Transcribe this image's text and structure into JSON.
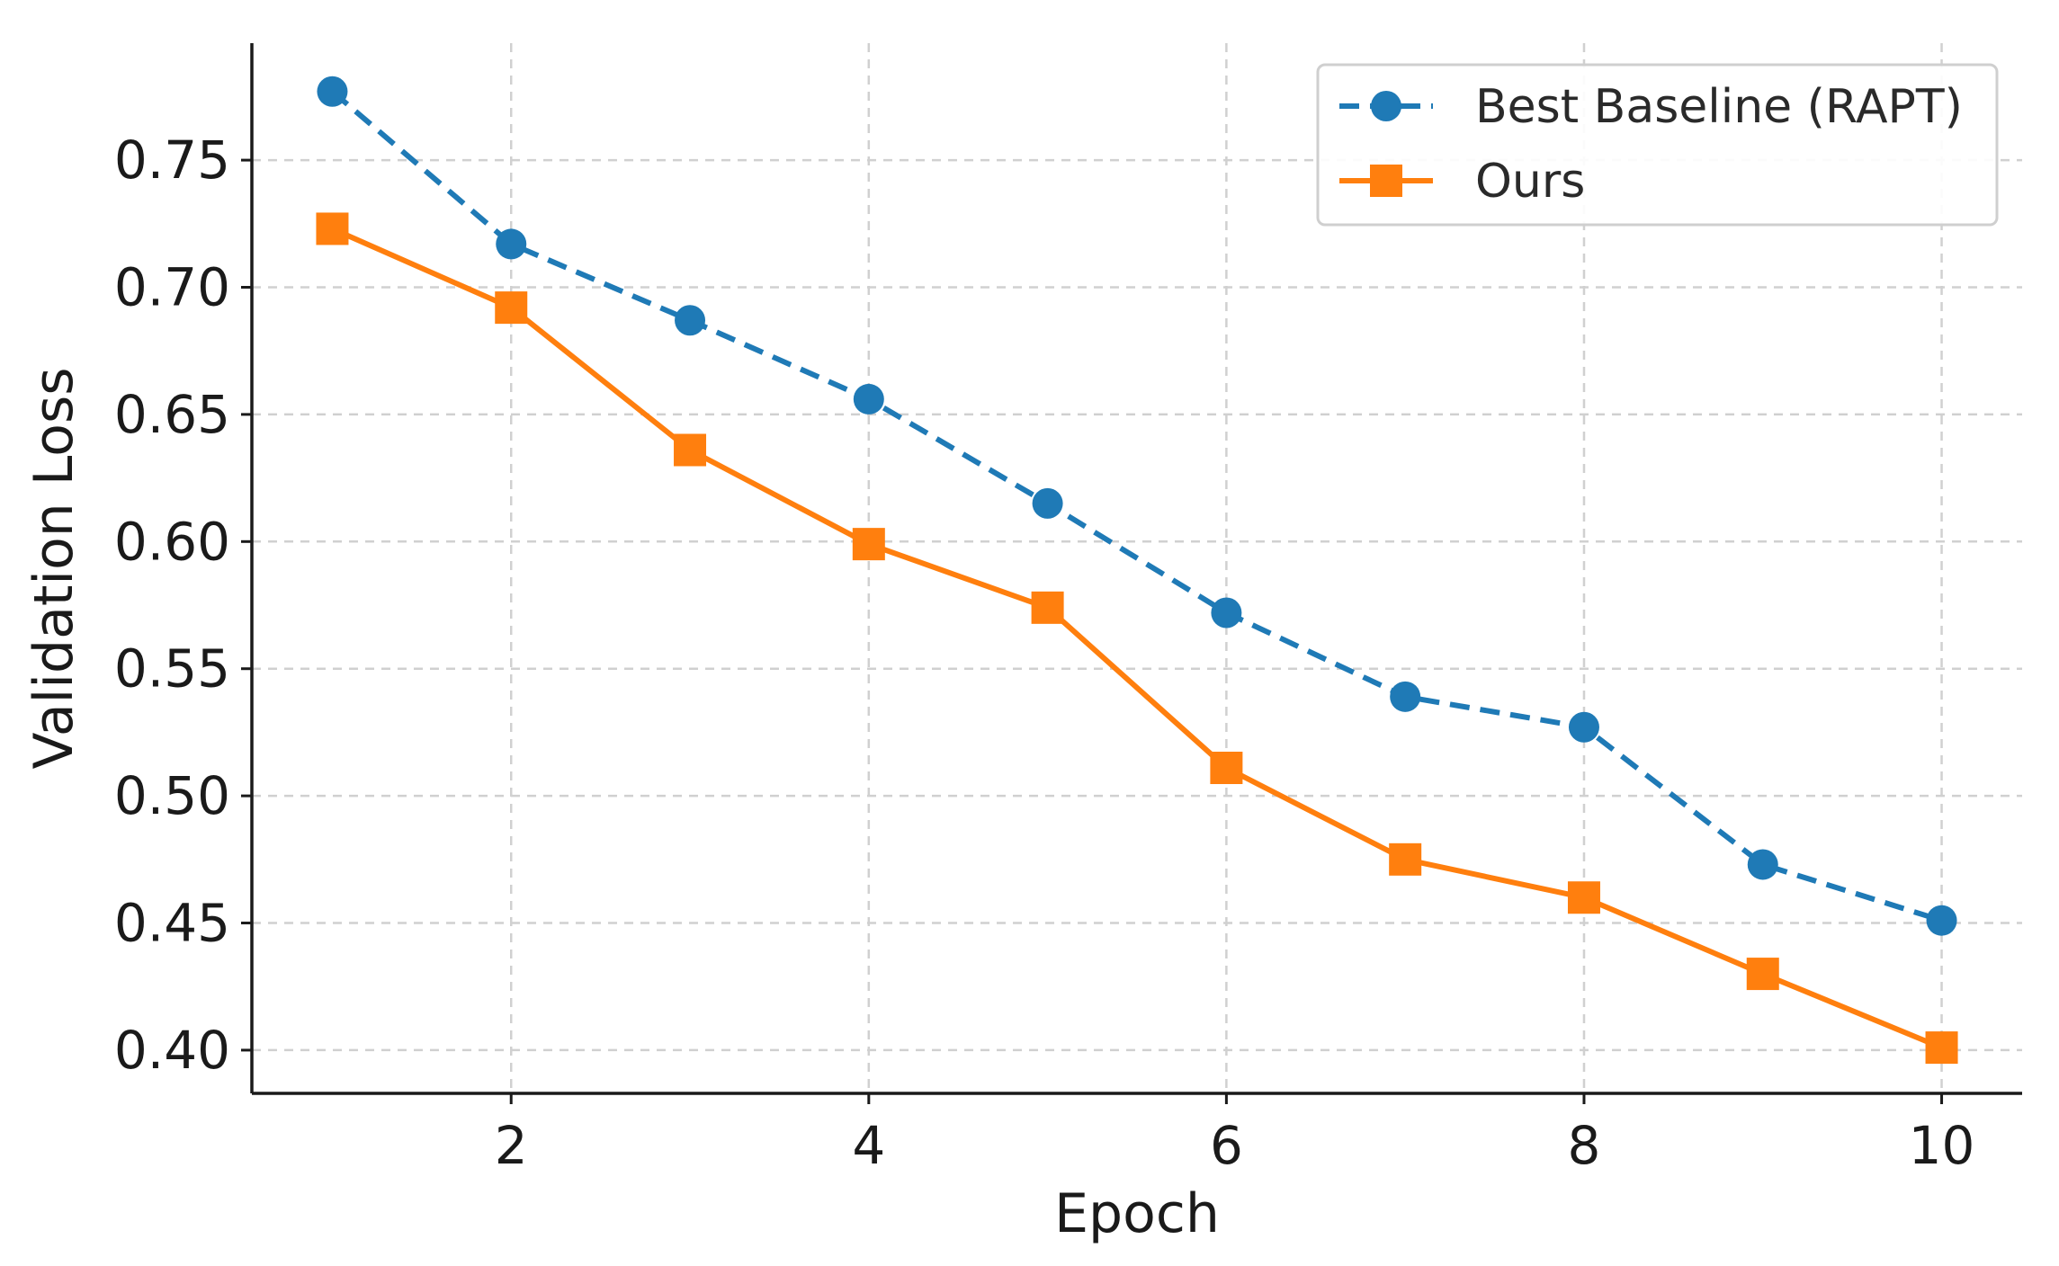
{
  "chart_data": {
    "type": "line",
    "title": "",
    "xlabel": "Epoch",
    "ylabel": "Validation Loss",
    "x": [
      1,
      2,
      3,
      4,
      5,
      6,
      7,
      8,
      9,
      10
    ],
    "xlim": [
      0.55,
      10.45
    ],
    "ylim": [
      0.383,
      0.796
    ],
    "xticks": [
      2,
      4,
      6,
      8,
      10
    ],
    "yticks": [
      0.4,
      0.45,
      0.5,
      0.55,
      0.6,
      0.65,
      0.7,
      0.75
    ],
    "xtick_labels": [
      "2",
      "4",
      "6",
      "8",
      "10"
    ],
    "ytick_labels": [
      "0.40",
      "0.45",
      "0.50",
      "0.55",
      "0.60",
      "0.65",
      "0.70",
      "0.75"
    ],
    "grid": true,
    "legend_position": "top-right",
    "series": [
      {
        "name": "Best Baseline (RAPT)",
        "values": [
          0.777,
          0.717,
          0.687,
          0.656,
          0.615,
          0.572,
          0.539,
          0.527,
          0.473,
          0.451
        ],
        "color": "#1f7ab6",
        "line_style": "dashed",
        "marker": "circle"
      },
      {
        "name": "Ours",
        "values": [
          0.723,
          0.692,
          0.636,
          0.599,
          0.574,
          0.511,
          0.475,
          0.46,
          0.43,
          0.401
        ],
        "color": "#ff7f0e",
        "line_style": "solid",
        "marker": "square"
      }
    ]
  }
}
